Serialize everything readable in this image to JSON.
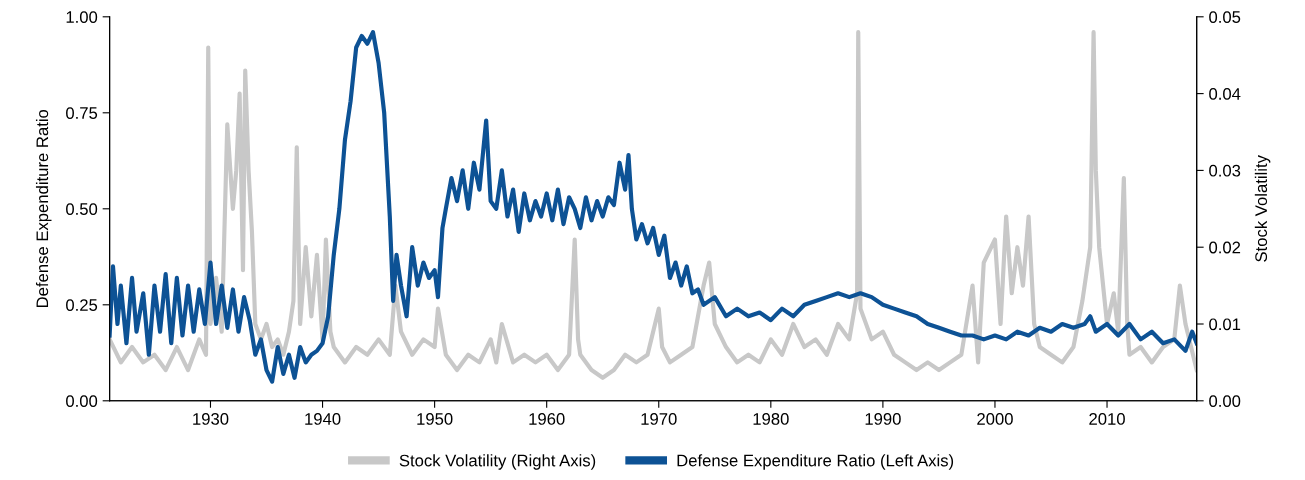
{
  "chart_data": {
    "type": "line",
    "ylabel": "Defense Expenditure Ratio",
    "y2label": "Stock Volatility",
    "xlim": [
      1921,
      2018
    ],
    "xticks": [
      1930,
      1940,
      1950,
      1960,
      1970,
      1980,
      1990,
      2000,
      2010
    ],
    "ylim": [
      0,
      1
    ],
    "yticks": [
      {
        "value": 0,
        "label": "0.00"
      },
      {
        "value": 0.25,
        "label": "0.25"
      },
      {
        "value": 0.5,
        "label": "0.50"
      },
      {
        "value": 0.75,
        "label": "0.75"
      },
      {
        "value": 1,
        "label": "1.00"
      }
    ],
    "y2lim": [
      0,
      0.05
    ],
    "y2ticks": [
      {
        "value": 0,
        "label": "0.00"
      },
      0.01,
      0.02,
      0.03,
      0.04,
      0.05
    ],
    "grid": false,
    "legend": "bottom",
    "line_style": "solid",
    "marker": "none",
    "series": [
      {
        "name": "Stock Volatility (Right Axis)",
        "color": "#c8c8c8",
        "axis": "y2",
        "x": [
          1921,
          1922,
          1923,
          1924,
          1925,
          1926,
          1927,
          1928,
          1929,
          1929.6,
          1929.8,
          1930,
          1930.5,
          1931,
          1931.5,
          1932,
          1932.3,
          1932.6,
          1932.9,
          1933.1,
          1933.4,
          1933.7,
          1934,
          1934.5,
          1935,
          1935.5,
          1936,
          1936.5,
          1937,
          1937.4,
          1937.7,
          1938,
          1938.5,
          1939,
          1939.5,
          1940,
          1940.3,
          1940.7,
          1941,
          1942,
          1943,
          1944,
          1945,
          1946,
          1946.5,
          1947,
          1948,
          1949,
          1950,
          1950.3,
          1951,
          1952,
          1953,
          1954,
          1955,
          1955.5,
          1956,
          1957,
          1958,
          1959,
          1960,
          1961,
          1962,
          1962.5,
          1962.8,
          1963,
          1964,
          1965,
          1966,
          1967,
          1968,
          1969,
          1970,
          1970.3,
          1971,
          1972,
          1973,
          1974,
          1974.5,
          1975,
          1976,
          1977,
          1978,
          1979,
          1980,
          1981,
          1982,
          1983,
          1984,
          1985,
          1986,
          1987,
          1987.7,
          1987.8,
          1988,
          1989,
          1990,
          1991,
          1992,
          1993,
          1994,
          1995,
          1996,
          1997,
          1998,
          1998.5,
          1999,
          2000,
          2000.5,
          2001,
          2001.5,
          2002,
          2002.5,
          2003,
          2003.5,
          2004,
          2005,
          2006,
          2007,
          2007.8,
          2008.5,
          2008.8,
          2009,
          2009.3,
          2010,
          2010.6,
          2011,
          2011.5,
          2011.8,
          2012,
          2013,
          2014,
          2015,
          2016,
          2016.5,
          2017,
          2017.5,
          2018
        ],
        "values": [
          0.008,
          0.005,
          0.007,
          0.005,
          0.006,
          0.004,
          0.007,
          0.004,
          0.008,
          0.006,
          0.046,
          0.01,
          0.016,
          0.009,
          0.036,
          0.025,
          0.03,
          0.04,
          0.017,
          0.043,
          0.03,
          0.022,
          0.01,
          0.008,
          0.01,
          0.007,
          0.008,
          0.006,
          0.009,
          0.013,
          0.033,
          0.01,
          0.02,
          0.011,
          0.019,
          0.008,
          0.021,
          0.009,
          0.007,
          0.005,
          0.007,
          0.006,
          0.008,
          0.006,
          0.015,
          0.009,
          0.006,
          0.008,
          0.007,
          0.012,
          0.006,
          0.004,
          0.006,
          0.005,
          0.008,
          0.005,
          0.01,
          0.005,
          0.006,
          0.005,
          0.006,
          0.004,
          0.006,
          0.021,
          0.008,
          0.006,
          0.004,
          0.003,
          0.004,
          0.006,
          0.005,
          0.006,
          0.012,
          0.007,
          0.005,
          0.006,
          0.007,
          0.015,
          0.018,
          0.01,
          0.007,
          0.005,
          0.006,
          0.005,
          0.008,
          0.006,
          0.01,
          0.007,
          0.008,
          0.006,
          0.01,
          0.008,
          0.014,
          0.048,
          0.012,
          0.008,
          0.009,
          0.006,
          0.005,
          0.004,
          0.005,
          0.004,
          0.005,
          0.006,
          0.015,
          0.005,
          0.018,
          0.021,
          0.01,
          0.024,
          0.014,
          0.02,
          0.015,
          0.024,
          0.01,
          0.007,
          0.006,
          0.005,
          0.007,
          0.013,
          0.02,
          0.048,
          0.03,
          0.02,
          0.01,
          0.014,
          0.009,
          0.029,
          0.01,
          0.006,
          0.007,
          0.005,
          0.007,
          0.008,
          0.015,
          0.01,
          0.007,
          0.004
        ]
      },
      {
        "name": "Defense Expenditure Ratio (Left Axis)",
        "color": "#0d5295",
        "axis": "y",
        "x": [
          1921,
          1921.3,
          1921.7,
          1922,
          1922.5,
          1923,
          1923.4,
          1924,
          1924.5,
          1925,
          1925.5,
          1926,
          1926.5,
          1927,
          1927.5,
          1928,
          1928.5,
          1929,
          1929.5,
          1930,
          1930.5,
          1931,
          1931.5,
          1932,
          1932.5,
          1933,
          1933.5,
          1934,
          1934.5,
          1935,
          1935.5,
          1936,
          1936.5,
          1937,
          1937.5,
          1938,
          1938.5,
          1939,
          1939.5,
          1940,
          1940.5,
          1941,
          1941.5,
          1942,
          1942.5,
          1943,
          1943.5,
          1944,
          1944.5,
          1945,
          1945.5,
          1946,
          1946.3,
          1946.6,
          1947,
          1947.5,
          1948,
          1948.5,
          1949,
          1949.5,
          1950,
          1950.3,
          1950.7,
          1951,
          1951.5,
          1952,
          1952.5,
          1953,
          1953.5,
          1954,
          1954.6,
          1955,
          1955.5,
          1956,
          1956.5,
          1957,
          1957.5,
          1958,
          1958.5,
          1959,
          1959.5,
          1960,
          1960.5,
          1961,
          1961.5,
          1962,
          1962.5,
          1963,
          1963.5,
          1964,
          1964.5,
          1965,
          1965.5,
          1966,
          1966.5,
          1967,
          1967.3,
          1967.6,
          1968,
          1968.5,
          1969,
          1969.5,
          1970,
          1970.5,
          1971,
          1971.5,
          1972,
          1972.5,
          1973,
          1973.5,
          1974,
          1975,
          1976,
          1977,
          1978,
          1979,
          1980,
          1981,
          1982,
          1983,
          1984,
          1985,
          1986,
          1987,
          1988,
          1989,
          1990,
          1991,
          1992,
          1993,
          1994,
          1995,
          1996,
          1997,
          1998,
          1999,
          2000,
          2001,
          2002,
          2003,
          2004,
          2005,
          2006,
          2007,
          2008,
          2008.5,
          2009,
          2010,
          2011,
          2012,
          2013,
          2014,
          2015,
          2016,
          2017,
          2017.6,
          2018
        ],
        "values": [
          0.17,
          0.35,
          0.2,
          0.3,
          0.15,
          0.32,
          0.18,
          0.28,
          0.12,
          0.3,
          0.18,
          0.33,
          0.15,
          0.32,
          0.17,
          0.3,
          0.18,
          0.29,
          0.2,
          0.36,
          0.2,
          0.3,
          0.19,
          0.29,
          0.18,
          0.27,
          0.21,
          0.12,
          0.16,
          0.08,
          0.05,
          0.14,
          0.07,
          0.12,
          0.06,
          0.14,
          0.1,
          0.12,
          0.13,
          0.15,
          0.22,
          0.38,
          0.5,
          0.68,
          0.78,
          0.92,
          0.95,
          0.93,
          0.96,
          0.88,
          0.75,
          0.48,
          0.26,
          0.38,
          0.3,
          0.22,
          0.4,
          0.3,
          0.36,
          0.32,
          0.34,
          0.27,
          0.45,
          0.5,
          0.58,
          0.52,
          0.6,
          0.5,
          0.62,
          0.55,
          0.73,
          0.52,
          0.5,
          0.6,
          0.48,
          0.55,
          0.44,
          0.54,
          0.47,
          0.52,
          0.48,
          0.54,
          0.47,
          0.55,
          0.46,
          0.53,
          0.5,
          0.45,
          0.53,
          0.47,
          0.52,
          0.48,
          0.53,
          0.51,
          0.62,
          0.55,
          0.64,
          0.5,
          0.42,
          0.46,
          0.41,
          0.45,
          0.38,
          0.43,
          0.32,
          0.36,
          0.3,
          0.35,
          0.28,
          0.29,
          0.25,
          0.27,
          0.22,
          0.24,
          0.22,
          0.23,
          0.21,
          0.24,
          0.22,
          0.25,
          0.26,
          0.27,
          0.28,
          0.27,
          0.28,
          0.27,
          0.25,
          0.24,
          0.23,
          0.22,
          0.2,
          0.19,
          0.18,
          0.17,
          0.17,
          0.16,
          0.17,
          0.16,
          0.18,
          0.17,
          0.19,
          0.18,
          0.2,
          0.19,
          0.2,
          0.22,
          0.18,
          0.2,
          0.17,
          0.2,
          0.16,
          0.18,
          0.15,
          0.16,
          0.13,
          0.18,
          0.15
        ]
      }
    ]
  }
}
